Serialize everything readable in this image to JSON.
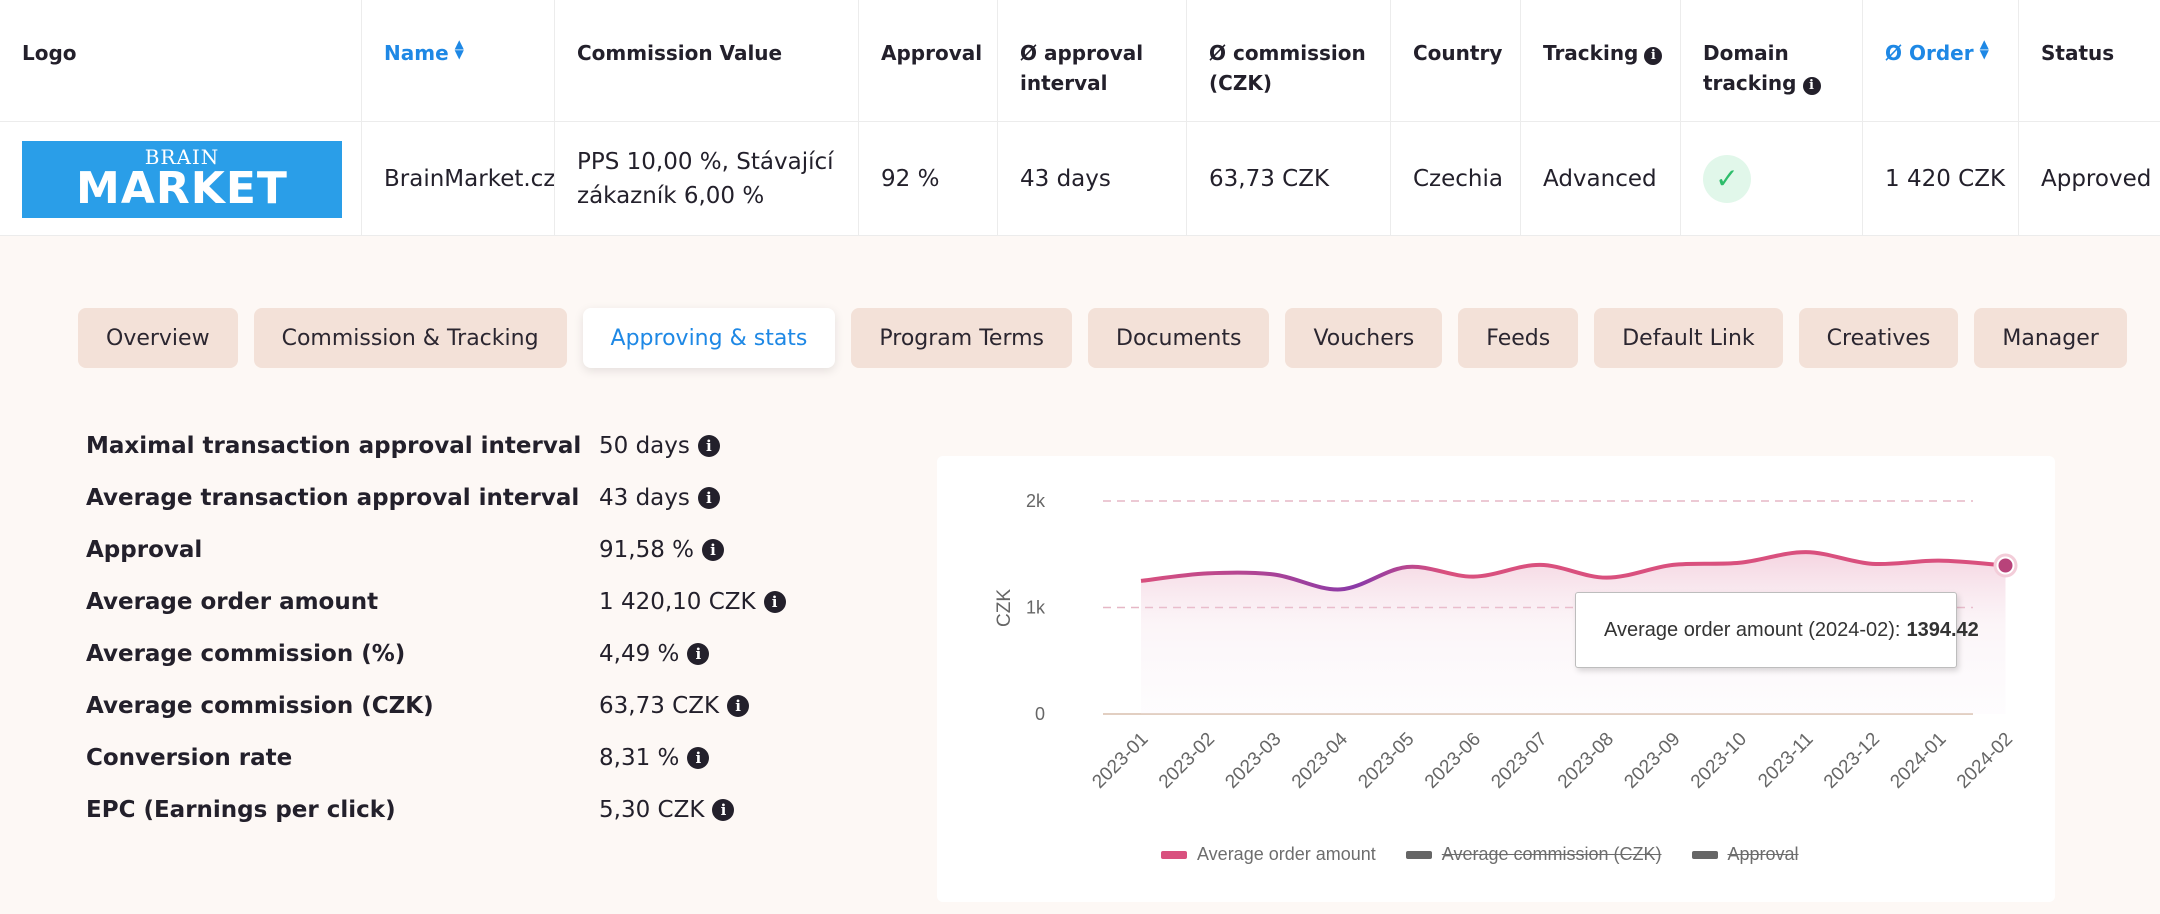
{
  "table": {
    "headers": {
      "logo": "Logo",
      "name": "Name",
      "commission_value": "Commission Value",
      "approval": "Approval",
      "approval_interval_1": "Ø approval",
      "approval_interval_2": "interval",
      "commission_czk_1": "Ø commission",
      "commission_czk_2": "(CZK)",
      "country": "Country",
      "tracking": "Tracking",
      "domain_tracking_1": "Domain",
      "domain_tracking_2": "tracking",
      "order": "Ø Order",
      "status": "Status"
    },
    "row": {
      "logo_text_top": "BRAIN",
      "logo_text_bottom": "MARKET",
      "name": "BrainMarket.cz",
      "commission_value_1": "PPS 10,00 %, Stávající",
      "commission_value_2": "zákazník 6,00 %",
      "approval": "92 %",
      "approval_interval": "43 days",
      "commission_czk": "63,73 CZK",
      "country": "Czechia",
      "tracking": "Advanced",
      "domain_tracking": "check-icon",
      "order": "1 420 CZK",
      "status": "Approved"
    }
  },
  "tabs": [
    {
      "label": "Overview",
      "active": false
    },
    {
      "label": "Commission & Tracking",
      "active": false
    },
    {
      "label": "Approving & stats",
      "active": true
    },
    {
      "label": "Program Terms",
      "active": false
    },
    {
      "label": "Documents",
      "active": false
    },
    {
      "label": "Vouchers",
      "active": false
    },
    {
      "label": "Feeds",
      "active": false
    },
    {
      "label": "Default Link",
      "active": false
    },
    {
      "label": "Creatives",
      "active": false
    },
    {
      "label": "Manager",
      "active": false
    }
  ],
  "stats": [
    {
      "label": "Maximal transaction approval interval",
      "value": "50 days"
    },
    {
      "label": "Average transaction approval interval",
      "value": "43 days"
    },
    {
      "label": "Approval",
      "value": "91,58 %"
    },
    {
      "label": "Average order amount",
      "value": "1 420,10 CZK"
    },
    {
      "label": "Average commission (%)",
      "value": "4,49 %"
    },
    {
      "label": "Average commission (CZK)",
      "value": "63,73 CZK"
    },
    {
      "label": "Conversion rate",
      "value": "8,31 %"
    },
    {
      "label": "EPC (Earnings per click)",
      "value": "5,30 CZK"
    }
  ],
  "tooltip": {
    "label": "Average order amount (2024-02):",
    "value": "1394.42"
  },
  "colors": {
    "accent": "#1e88e5",
    "tab_bg": "#f3e1d8",
    "line_start": "#e0557f",
    "line_mid": "#8a3aa8",
    "legend_off": "#6d6d6d"
  },
  "chart_data": {
    "type": "area",
    "ylabel": "CZK",
    "yticks": [
      "0",
      "1k",
      "2k"
    ],
    "ylim": [
      0,
      2000
    ],
    "categories": [
      "2023-01",
      "2023-02",
      "2023-03",
      "2023-04",
      "2023-05",
      "2023-06",
      "2023-07",
      "2023-08",
      "2023-09",
      "2023-10",
      "2023-11",
      "2023-12",
      "2024-01",
      "2024-02"
    ],
    "series": [
      {
        "name": "Average order amount",
        "values": [
          1250,
          1320,
          1310,
          1170,
          1380,
          1290,
          1400,
          1280,
          1400,
          1420,
          1520,
          1410,
          1440,
          1394.42
        ],
        "visible": true,
        "color": "#d94f7e"
      },
      {
        "name": "Average commission (CZK)",
        "visible": false,
        "color": "#666666"
      },
      {
        "name": "Approval",
        "visible": false,
        "color": "#666666"
      }
    ],
    "grid": true,
    "legend": "bottom-center"
  }
}
